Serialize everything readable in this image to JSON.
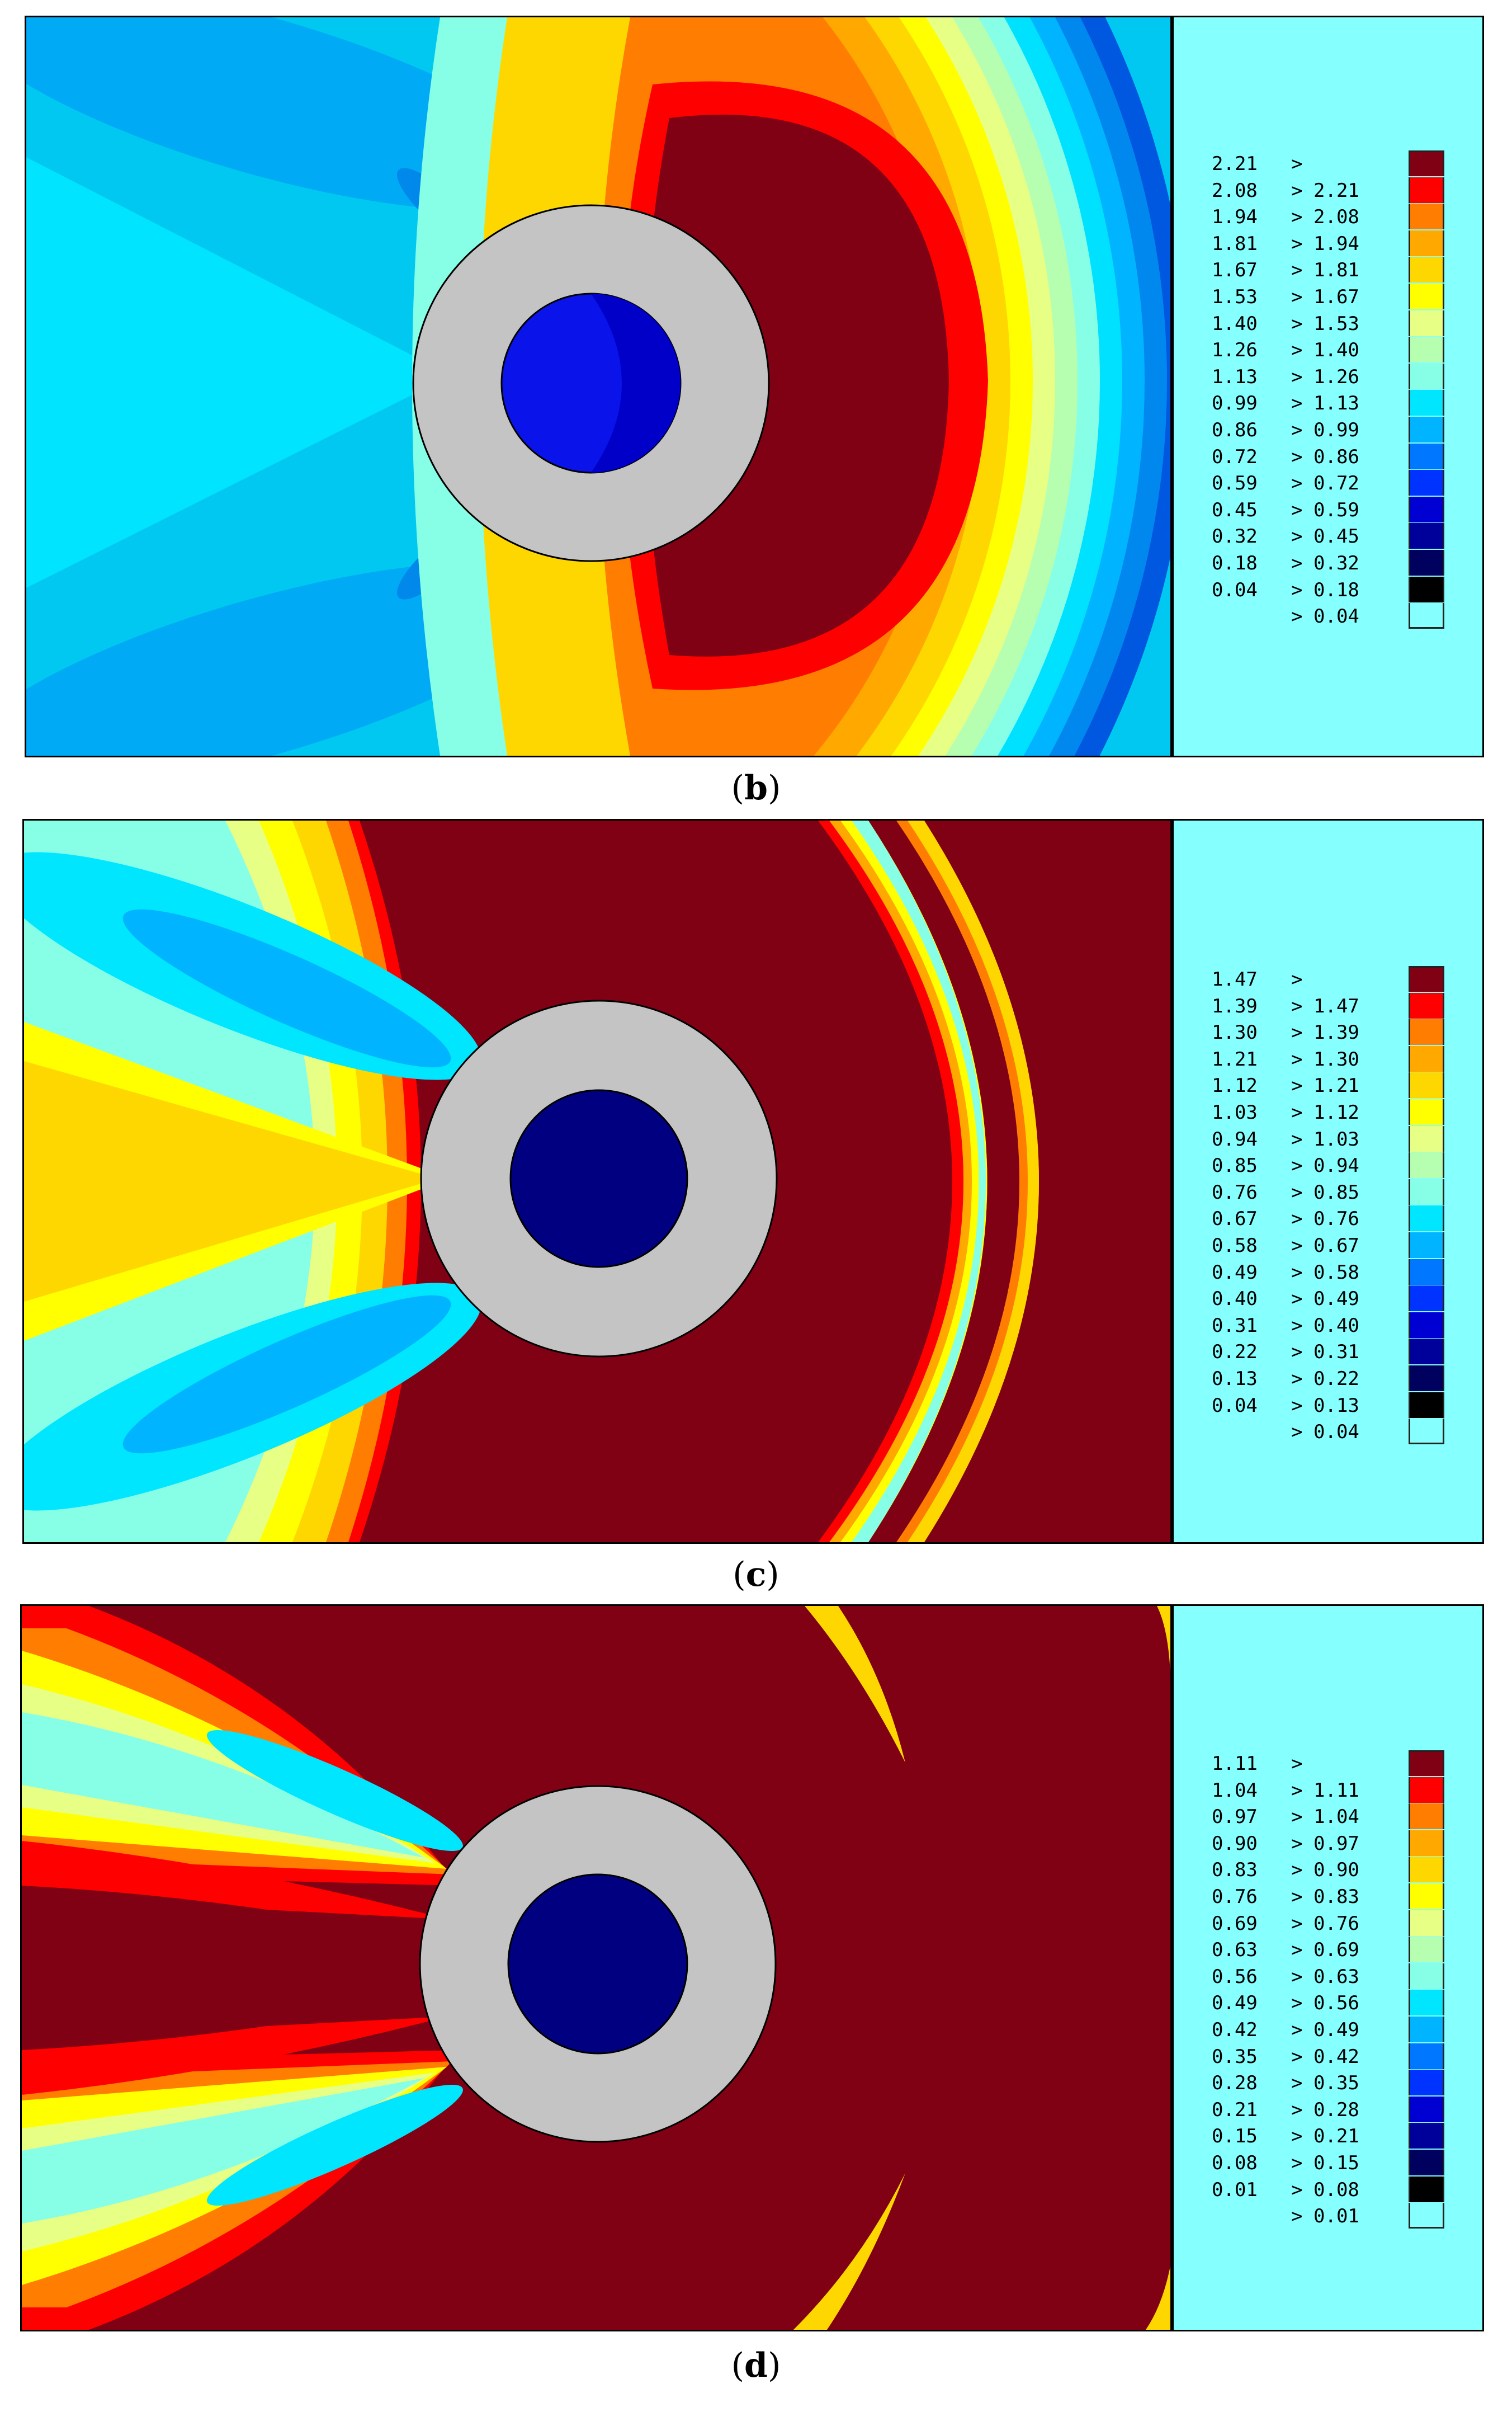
{
  "palette": [
    "#000000",
    "#00005e",
    "#00009a",
    "#0000d2",
    "#0033ff",
    "#0077ff",
    "#00b4ff",
    "#00e6ff",
    "#86ffe6",
    "#b6ffb0",
    "#e8ff86",
    "#ffff00",
    "#ffd700",
    "#ffa800",
    "#ff7d00",
    "#ff0000",
    "#800014"
  ],
  "colors": {
    "legend_bg": "#86ffff",
    "cylinder_outer": "#c4c4c4",
    "cylinder_core_b": "#0a14ea",
    "cylinder_core_b_shade": "#0000c8",
    "cylinder_core_cd": "#000080"
  },
  "chart_data": [
    {
      "type": "heatmap",
      "panel": "b",
      "caption": "b",
      "legend": {
        "lower": [
          "2.21",
          "2.08",
          "1.94",
          "1.81",
          "1.67",
          "1.53",
          "1.40",
          "1.26",
          "1.13",
          "0.99",
          "0.86",
          "0.72",
          "0.59",
          "0.45",
          "0.32",
          "0.18",
          "0.04",
          ""
        ],
        "upper": [
          "",
          "2.21",
          "2.08",
          "1.94",
          "1.81",
          "1.67",
          "1.53",
          "1.40",
          "1.26",
          "1.13",
          "0.99",
          "0.86",
          "0.72",
          "0.59",
          "0.45",
          "0.32",
          "0.18",
          "0.04"
        ]
      },
      "max_level": 2.21,
      "min_level": 0.04
    },
    {
      "type": "heatmap",
      "panel": "c",
      "caption": "c",
      "legend": {
        "lower": [
          "1.47",
          "1.39",
          "1.30",
          "1.21",
          "1.12",
          "1.03",
          "0.94",
          "0.85",
          "0.76",
          "0.67",
          "0.58",
          "0.49",
          "0.40",
          "0.31",
          "0.22",
          "0.13",
          "0.04",
          ""
        ],
        "upper": [
          "",
          "1.47",
          "1.39",
          "1.30",
          "1.21",
          "1.12",
          "1.03",
          "0.94",
          "0.85",
          "0.76",
          "0.67",
          "0.58",
          "0.49",
          "0.40",
          "0.31",
          "0.22",
          "0.13",
          "0.04"
        ]
      },
      "max_level": 1.47,
      "min_level": 0.04
    },
    {
      "type": "heatmap",
      "panel": "d",
      "caption": "d",
      "legend": {
        "lower": [
          "1.11",
          "1.04",
          "0.97",
          "0.90",
          "0.83",
          "0.76",
          "0.69",
          "0.63",
          "0.56",
          "0.49",
          "0.42",
          "0.35",
          "0.28",
          "0.21",
          "0.15",
          "0.08",
          "0.01",
          ""
        ],
        "upper": [
          "",
          "1.11",
          "1.04",
          "0.97",
          "0.90",
          "0.83",
          "0.76",
          "0.69",
          "0.63",
          "0.56",
          "0.49",
          "0.42",
          "0.35",
          "0.28",
          "0.21",
          "0.15",
          "0.08",
          "0.01"
        ]
      },
      "max_level": 1.11,
      "min_level": 0.01
    }
  ]
}
